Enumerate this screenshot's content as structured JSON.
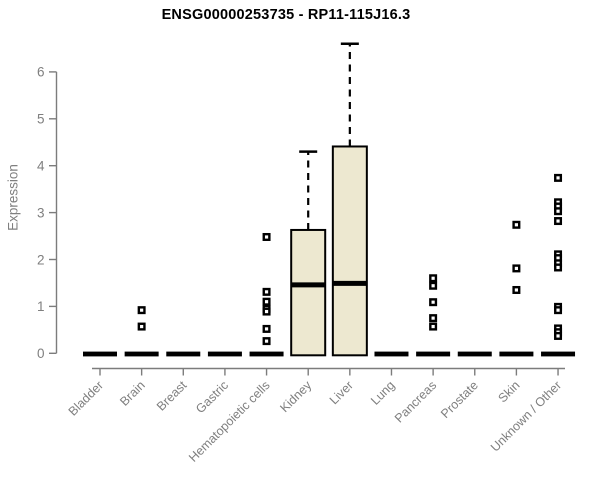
{
  "chart_data": {
    "type": "boxplot",
    "title": "ENSG00000253735 - RP11-115J16.3",
    "ylabel": "Expression",
    "xlabel": "",
    "ylim": [
      0,
      6.6
    ],
    "yticks": [
      0,
      1,
      2,
      3,
      4,
      5,
      6
    ],
    "grid": false,
    "legend": "none",
    "categories": [
      "Bladder",
      "Brain",
      "Breast",
      "Gastric",
      "Hematopoietic cells",
      "Kidney",
      "Liver",
      "Lung",
      "Pancreas",
      "Prostate",
      "Skin",
      "Unknown / Other"
    ],
    "series": [
      {
        "category": "Bladder",
        "q1": 0,
        "median": 0,
        "q3": 0,
        "whisker_low": 0,
        "whisker_high": 0,
        "outliers": []
      },
      {
        "category": "Brain",
        "q1": 0,
        "median": 0,
        "q3": 0,
        "whisker_low": 0,
        "whisker_high": 0,
        "outliers": [
          0.92,
          0.57
        ]
      },
      {
        "category": "Breast",
        "q1": 0,
        "median": 0,
        "q3": 0,
        "whisker_low": 0,
        "whisker_high": 0,
        "outliers": []
      },
      {
        "category": "Gastric",
        "q1": 0,
        "median": 0,
        "q3": 0,
        "whisker_low": 0,
        "whisker_high": 0,
        "outliers": []
      },
      {
        "category": "Hematopoietic cells",
        "q1": 0,
        "median": 0,
        "q3": 0,
        "whisker_low": 0,
        "whisker_high": 0,
        "outliers": [
          2.48,
          1.31,
          1.1,
          0.95,
          0.89,
          0.52,
          0.26
        ]
      },
      {
        "category": "Kidney",
        "q1": 0,
        "median": 1.46,
        "q3": 2.63,
        "whisker_low": 0,
        "whisker_high": 4.3,
        "outliers": []
      },
      {
        "category": "Liver",
        "q1": 0,
        "median": 1.49,
        "q3": 4.41,
        "whisker_low": 0,
        "whisker_high": 6.6,
        "outliers": []
      },
      {
        "category": "Lung",
        "q1": 0,
        "median": 0,
        "q3": 0,
        "whisker_low": 0,
        "whisker_high": 0,
        "outliers": []
      },
      {
        "category": "Pancreas",
        "q1": 0,
        "median": 0,
        "q3": 0,
        "whisker_low": 0,
        "whisker_high": 0,
        "outliers": [
          1.6,
          1.44,
          1.09,
          0.75,
          0.57
        ]
      },
      {
        "category": "Prostate",
        "q1": 0,
        "median": 0,
        "q3": 0,
        "whisker_low": 0,
        "whisker_high": 0,
        "outliers": []
      },
      {
        "category": "Skin",
        "q1": 0,
        "median": 0,
        "q3": 0,
        "whisker_low": 0,
        "whisker_high": 0,
        "outliers": [
          2.74,
          1.81,
          1.35
        ]
      },
      {
        "category": "Unknown / Other",
        "q1": 0,
        "median": 0,
        "q3": 0,
        "whisker_low": 0,
        "whisker_high": 0,
        "outliers": [
          3.74,
          3.22,
          3.13,
          3.03,
          2.82,
          2.11,
          2.03,
          1.92,
          1.83,
          0.99,
          0.92,
          0.53,
          0.45,
          0.37
        ]
      }
    ],
    "colors": {
      "box_fill": "#EDE8D0",
      "box_border": "#000000",
      "median": "#000000",
      "whisker": "#000000",
      "outlier": "#000000",
      "axis": "#7c7c7c",
      "tick_label": "#7f7f7f",
      "title": "#000000",
      "background": "#ffffff"
    }
  }
}
